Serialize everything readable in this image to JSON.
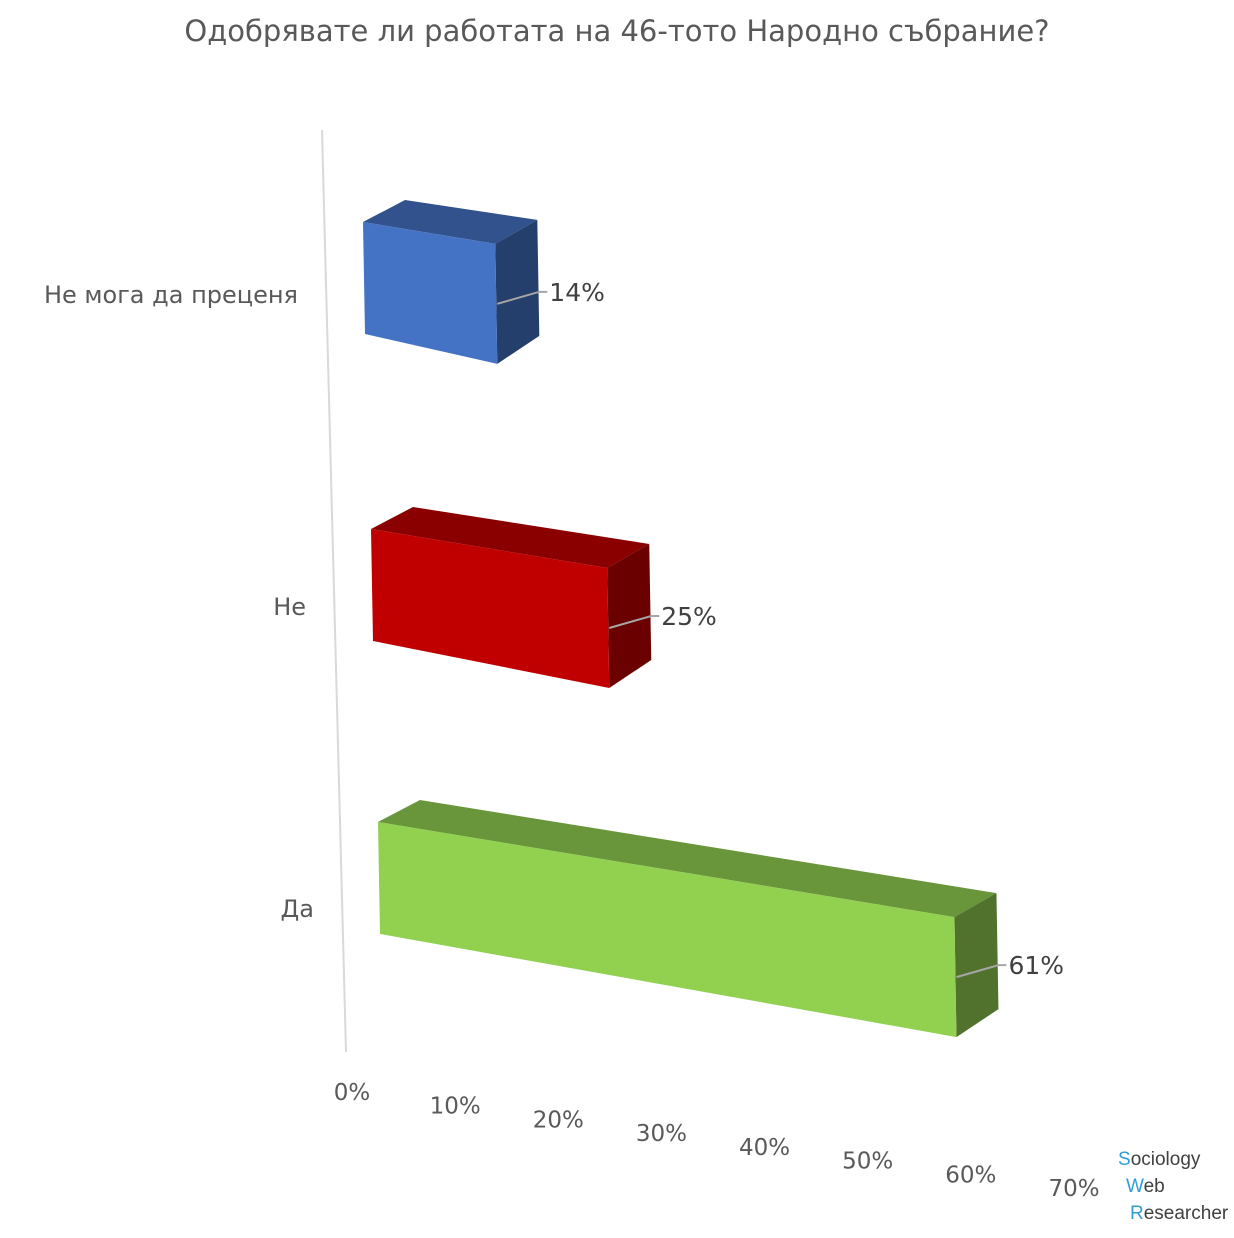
{
  "chart_data": {
    "type": "bar",
    "orientation": "horizontal",
    "style": "3d",
    "title": "Одобрявате ли работата на 46-тото Народно събрание?",
    "categories": [
      "Не мога да преценя",
      "Не",
      "Да"
    ],
    "values": [
      14,
      25,
      61
    ],
    "data_labels": [
      "14%",
      "25%",
      "61%"
    ],
    "colors": [
      "#4472c4",
      "#c00000",
      "#92d050"
    ],
    "xlim": [
      0,
      70
    ],
    "x_ticks": [
      "0%",
      "10%",
      "20%",
      "30%",
      "40%",
      "50%",
      "60%",
      "70%"
    ],
    "xlabel": "",
    "ylabel": "",
    "grid": false,
    "legend": "none"
  },
  "watermark": {
    "line1_initial": "S",
    "line1_rest": "ociology",
    "line2_initial": "W",
    "line2_rest": "eb",
    "line3_initial": "R",
    "line3_rest": "esearcher"
  }
}
